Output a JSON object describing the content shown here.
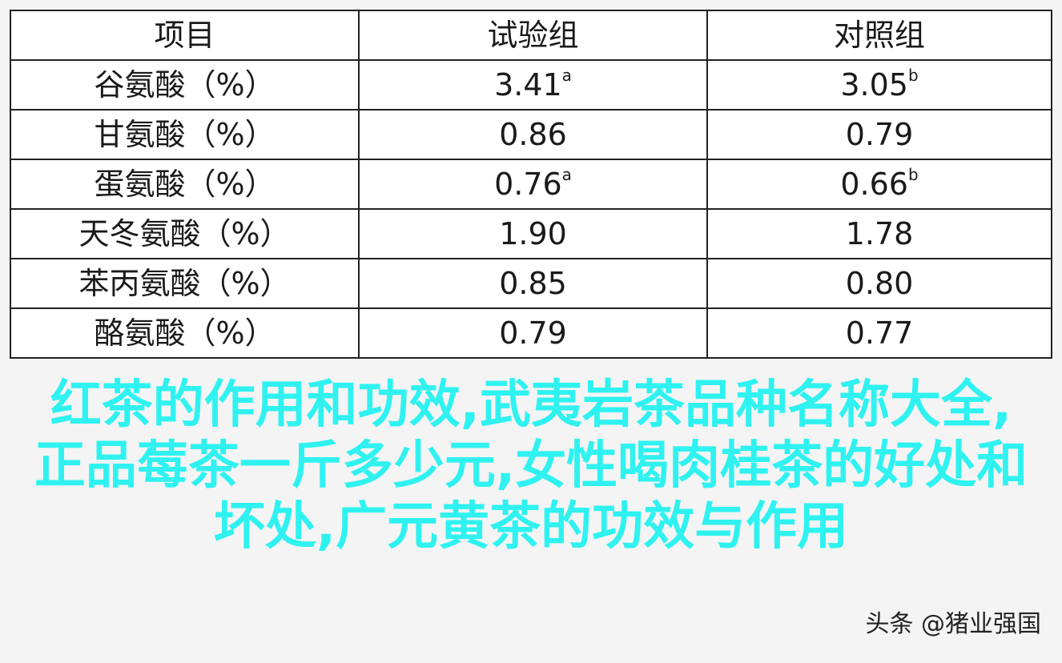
{
  "table": {
    "headers": [
      "项目",
      "试验组",
      "对照组"
    ],
    "rows": [
      {
        "label": "谷氨酸（%）",
        "test": "3.41",
        "test_sup": "a",
        "control": "3.05",
        "control_sup": "b"
      },
      {
        "label": "甘氨酸（%）",
        "test": "0.86",
        "test_sup": "",
        "control": "0.79",
        "control_sup": ""
      },
      {
        "label": "蛋氨酸（%）",
        "test": "0.76",
        "test_sup": "a",
        "control": "0.66",
        "control_sup": "b"
      },
      {
        "label": "天冬氨酸（%）",
        "test": "1.90",
        "test_sup": "",
        "control": "1.78",
        "control_sup": ""
      },
      {
        "label": "苯丙氨酸（%）",
        "test": "0.85",
        "test_sup": "",
        "control": "0.80",
        "control_sup": ""
      },
      {
        "label": "酪氨酸（%）",
        "test": "0.79",
        "test_sup": "",
        "control": "0.77",
        "control_sup": ""
      }
    ]
  },
  "overlay": {
    "line1": "红茶的作用和功效,武夷岩茶品种名称大全,",
    "line2": "正品莓茶一斤多少元,女性喝肉桂茶的好处和",
    "line3": "坏处,广元黄茶的功效与作用",
    "color": "#2ff2f0"
  },
  "watermark": "头条 @猪业强国"
}
